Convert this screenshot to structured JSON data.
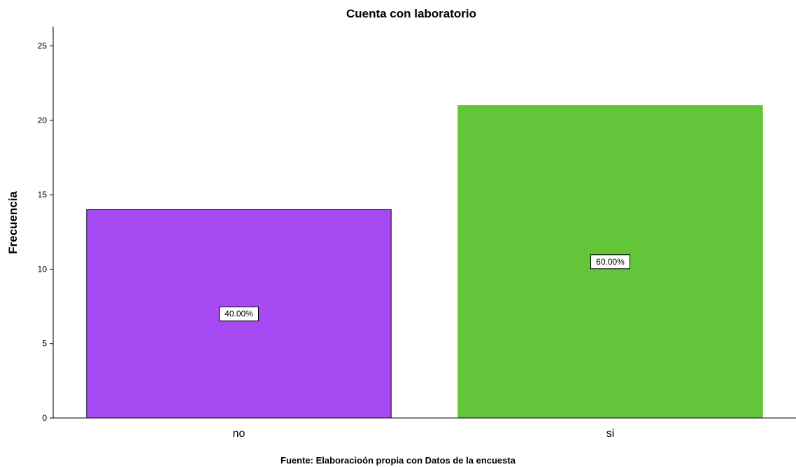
{
  "chart_data": {
    "type": "bar",
    "title": "Cuenta con laboratorio",
    "xlabel": "",
    "ylabel": "Frecuencia",
    "categories": [
      "no",
      "si"
    ],
    "values": [
      14,
      21
    ],
    "data_labels": [
      "40.00%",
      "60.00%"
    ],
    "colors": [
      "#a64bf4",
      "#62c53a"
    ],
    "ylim": [
      0,
      26.3
    ],
    "yticks": [
      0,
      5,
      10,
      15,
      20,
      25
    ],
    "grid": false,
    "legend": "none",
    "footnote": "Fuente: Elaboracioón propia con Datos de la encuesta"
  }
}
